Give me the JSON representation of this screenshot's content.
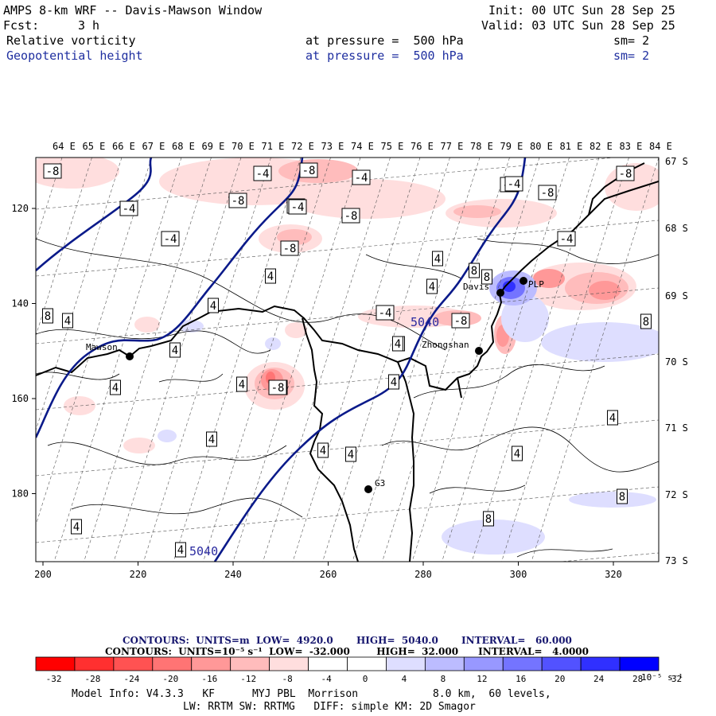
{
  "header": {
    "title": "AMPS 8-km WRF -- Davis-Mawson Window",
    "fcst_label": "Fcst:",
    "fcst_value": "3 h",
    "init": "Init: 00 UTC Sun 28 Sep 25",
    "valid": "Valid: 03 UTC Sun 28 Sep 25",
    "field1": {
      "name": "Relative vorticity",
      "level": "at pressure =  500 hPa",
      "smooth": "sm= 2"
    },
    "field2": {
      "name": "Geopotential height",
      "level": "at pressure =  500 hPa",
      "smooth": "sm= 2"
    }
  },
  "map": {
    "lon_labels": [
      "64 E",
      "65 E",
      "66 E",
      "67 E",
      "68 E",
      "69 E",
      "70 E",
      "71 E",
      "72 E",
      "73 E",
      "74 E",
      "75 E",
      "76 E",
      "77 E",
      "78 E",
      "79 E",
      "80 E",
      "81 E",
      "82 E",
      "83 E",
      "84 E"
    ],
    "lat_labels": [
      "67 S",
      "68 S",
      "69 S",
      "70 S",
      "71 S",
      "72 S",
      "73 S"
    ],
    "x_ticks": [
      "200",
      "220",
      "240",
      "260",
      "280",
      "300",
      "320"
    ],
    "y_ticks": [
      "120",
      "140",
      "160",
      "180"
    ],
    "stations": [
      {
        "name": "Mawson"
      },
      {
        "name": "Davis"
      },
      {
        "name": "Zhongshan"
      },
      {
        "name": "G3"
      },
      {
        "name": "PLP"
      }
    ],
    "height_contour_labels": [
      "5040",
      "5040"
    ],
    "vorticity_labels": [
      "-8",
      "-4",
      "-8",
      "-4",
      "-8",
      "-4",
      "-8",
      "-8",
      "-8",
      "-4",
      "-4",
      "-4",
      "-8",
      "-8",
      "-4",
      "4",
      "4",
      "4",
      "8",
      "4",
      "8",
      "4",
      "4",
      "4",
      "4",
      "-4",
      "-8",
      "8",
      "8",
      "4",
      "-8",
      "4",
      "-4",
      "4",
      "4",
      "4",
      "4",
      "4",
      "8",
      "8",
      "4",
      "4",
      "4",
      "4",
      "4",
      "-8"
    ]
  },
  "footer": {
    "contours_height": "CONTOURS:  UNITS=m  LOW=  4920.0       HIGH=  5040.0       INTERVAL=   60.000",
    "contours_vort": "CONTOURS:  UNITS=10⁻⁵ s⁻¹  LOW=  -32.000        HIGH=  32.000      INTERVAL=   4.0000",
    "colorbar_labels": [
      "-32",
      "-28",
      "-24",
      "-20",
      "-16",
      "-12",
      "-8",
      "-4",
      "0",
      "4",
      "8",
      "12",
      "16",
      "20",
      "24",
      "28",
      "32"
    ],
    "colorbar_units": "10⁻⁵ s⁻¹",
    "colorbar_colors": [
      "#ff0000",
      "#ff3030",
      "#ff5252",
      "#ff7474",
      "#ff9898",
      "#ffbcbc",
      "#ffdede",
      "#ffffff",
      "#ffffff",
      "#dedeff",
      "#bcbcff",
      "#9898ff",
      "#7474ff",
      "#5252ff",
      "#3030ff",
      "#0000ff"
    ],
    "model_info": "Model Info: V4.3.3   KF      MYJ PBL  Morrison            8.0 km,  60 levels,",
    "model_info2": "LW: RRTM SW: RRTMG   DIFF: simple KM: 2D Smagor"
  }
}
